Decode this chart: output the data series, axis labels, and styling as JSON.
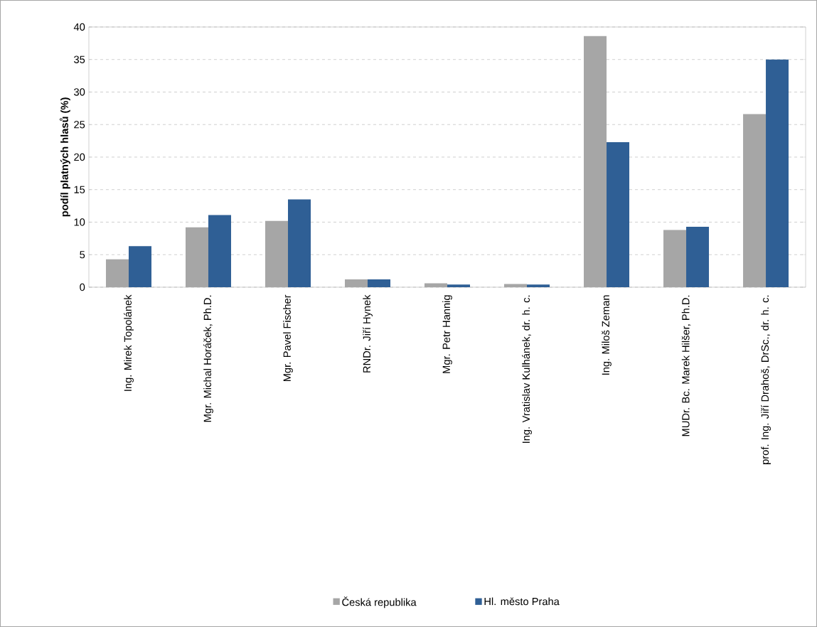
{
  "chart_data": {
    "type": "bar",
    "ylabel": "podíl platných hlasů (%)",
    "categories": [
      "Ing. Mirek Topolánek",
      "Mgr. Michal Horáček, Ph.D.",
      "Mgr. Pavel Fischer",
      "RNDr. Jiří Hynek",
      "Mgr. Petr Hannig",
      "Ing. Vratislav Kulhánek, dr. h. c.",
      "Ing. Miloš Zeman",
      "MUDr. Bc. Marek Hilšer, Ph.D.",
      "prof. Ing. Jiří Drahoš, DrSc., dr. h. c."
    ],
    "series": [
      {
        "name": "Česká republika",
        "color": "#a6a6a6",
        "values": [
          4.3,
          9.2,
          10.2,
          1.2,
          0.6,
          0.5,
          38.6,
          8.8,
          26.6
        ]
      },
      {
        "name": "Hl. město Praha",
        "color": "#2f5f95",
        "values": [
          6.3,
          11.1,
          13.5,
          1.2,
          0.4,
          0.4,
          22.3,
          9.3,
          35.0
        ]
      }
    ],
    "ylim": [
      0,
      40
    ],
    "yticks": [
      0,
      5,
      10,
      15,
      20,
      25,
      30,
      35,
      40
    ],
    "grid": "y",
    "legend": "bottom"
  }
}
